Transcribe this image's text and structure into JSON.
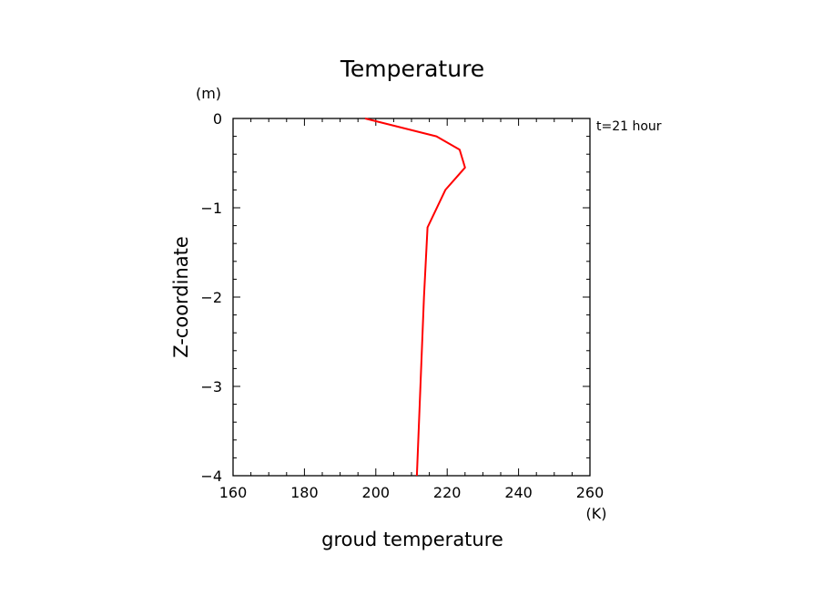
{
  "chart_data": {
    "type": "line",
    "title": "Temperature",
    "xlabel": "groud temperature",
    "ylabel": "Z-coordinate",
    "x_unit": "(K)",
    "y_unit": "(m)",
    "annotation": "t=21 hour",
    "xlim": [
      160,
      260
    ],
    "ylim": [
      -4,
      0
    ],
    "x_ticks": [
      160,
      180,
      200,
      220,
      240,
      260
    ],
    "y_ticks": [
      0,
      -1,
      -2,
      -3,
      -4
    ],
    "x_tick_labels": [
      "160",
      "180",
      "200",
      "220",
      "240",
      "260"
    ],
    "y_tick_labels": [
      "0",
      "−1",
      "−2",
      "−3",
      "−4"
    ],
    "grid": false,
    "series": [
      {
        "color": "#ff0000",
        "x": [
          197,
          217,
          223.5,
          225,
          219.5,
          214.5,
          213.5,
          212.5,
          211.5
        ],
        "y": [
          0,
          -0.2,
          -0.35,
          -0.55,
          -0.8,
          -1.22,
          -2.0,
          -3.0,
          -4.0
        ]
      }
    ]
  }
}
